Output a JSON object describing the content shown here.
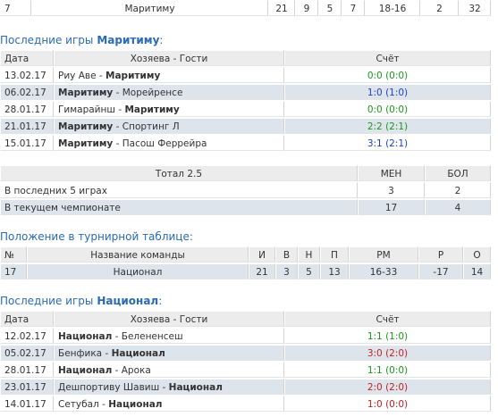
{
  "separator": " - ",
  "standing_top": {
    "row": [
      7,
      "Маритиму",
      21,
      9,
      5,
      7,
      "18-16",
      2,
      32
    ]
  },
  "maritimo": {
    "heading": {
      "prefix": "Последние игры",
      "team": "Маритиму",
      "suffix": ":"
    },
    "header": [
      "Дата",
      "Хозяева - Гости",
      "Счёт"
    ],
    "rows": [
      {
        "date": "13.02.17",
        "home": "Риу Аве",
        "away": "Маритиму",
        "bold": "away",
        "score": "0:0 (0:0)",
        "color": "#1c961c"
      },
      {
        "date": "06.02.17",
        "home": "Маритиму",
        "away": "Морейренсе",
        "bold": "home",
        "score": "1:0 (1:0)",
        "color": "#1f3fc4"
      },
      {
        "date": "28.01.17",
        "home": "Гимарайнш",
        "away": "Маритиму",
        "bold": "away",
        "score": "0:0 (0:0)",
        "color": "#1c961c"
      },
      {
        "date": "21.01.17",
        "home": "Маритиму",
        "away": "Спортинг Л",
        "bold": "home",
        "score": "2:2 (2:1)",
        "color": "#1c961c"
      },
      {
        "date": "15.01.17",
        "home": "Маритиму",
        "away": "Пасош Феррейра",
        "bold": "home",
        "score": "3:1 (2:1)",
        "color": "#1f3fc4"
      }
    ]
  },
  "totals": {
    "header": [
      "Тотал 2.5",
      "МЕН",
      "БОЛ"
    ],
    "rows": [
      [
        "В последних 5 играх",
        3,
        2
      ],
      [
        "В текущем чемпионате",
        17,
        4
      ]
    ]
  },
  "standings": {
    "heading": "Положение в турнирной таблице:",
    "header": [
      "№",
      "Название команды",
      "И",
      "В",
      "Н",
      "П",
      "РМ",
      "Р",
      "О"
    ],
    "rows": [
      [
        17,
        "Национал",
        21,
        3,
        5,
        13,
        "16-33",
        -17,
        14
      ]
    ]
  },
  "nacional": {
    "heading": {
      "prefix": "Последние игры",
      "team": "Национал",
      "suffix": ":"
    },
    "header": [
      "Дата",
      "Хозяева - Гости",
      "Счёт"
    ],
    "rows": [
      {
        "date": "12.02.17",
        "home": "Национал",
        "away": "Белененсеш",
        "bold": "home",
        "score": "1:1 (1:0)",
        "color": "#1c961c"
      },
      {
        "date": "05.02.17",
        "home": "Бенфика",
        "away": "Национал",
        "bold": "away",
        "score": "3:0 (2:0)",
        "color": "#c41f1f"
      },
      {
        "date": "28.01.17",
        "home": "Национал",
        "away": "Арока",
        "bold": "home",
        "score": "1:1 (0:0)",
        "color": "#1c961c"
      },
      {
        "date": "23.01.17",
        "home": "Дешпортиву Шавиш",
        "away": "Национал",
        "bold": "away",
        "score": "2:0 (2:0)",
        "color": "#c41f1f"
      },
      {
        "date": "14.01.17",
        "home": "Сетубал",
        "away": "Национал",
        "bold": "away",
        "score": "1:0 (0:0)",
        "color": "#c41f1f"
      }
    ]
  }
}
